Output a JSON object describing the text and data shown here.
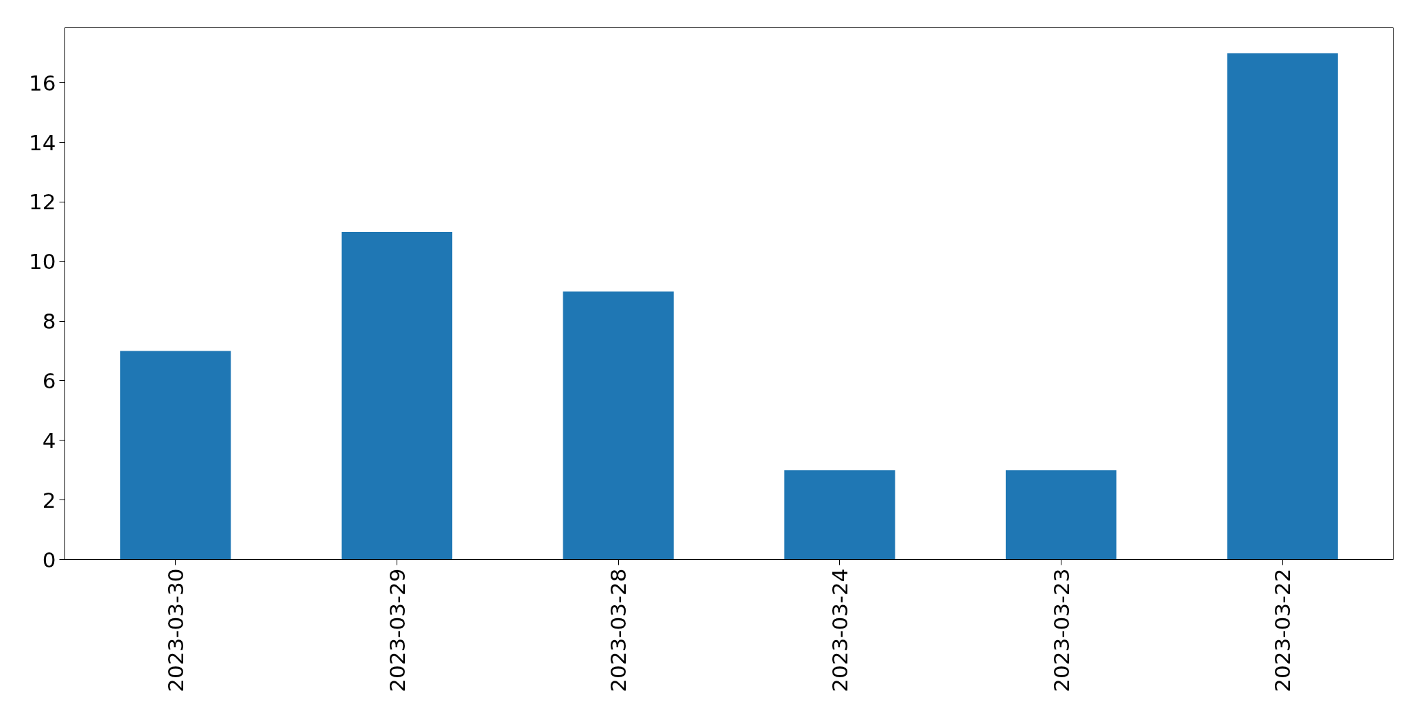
{
  "chart_data": {
    "type": "bar",
    "categories": [
      "2023-03-30",
      "2023-03-29",
      "2023-03-28",
      "2023-03-24",
      "2023-03-23",
      "2023-03-22"
    ],
    "values": [
      7,
      11,
      9,
      3,
      3,
      17
    ],
    "color": "#1f77b4",
    "ylim": [
      0,
      17.85
    ],
    "yticks": [
      0,
      2,
      4,
      6,
      8,
      10,
      12,
      14,
      16
    ]
  }
}
